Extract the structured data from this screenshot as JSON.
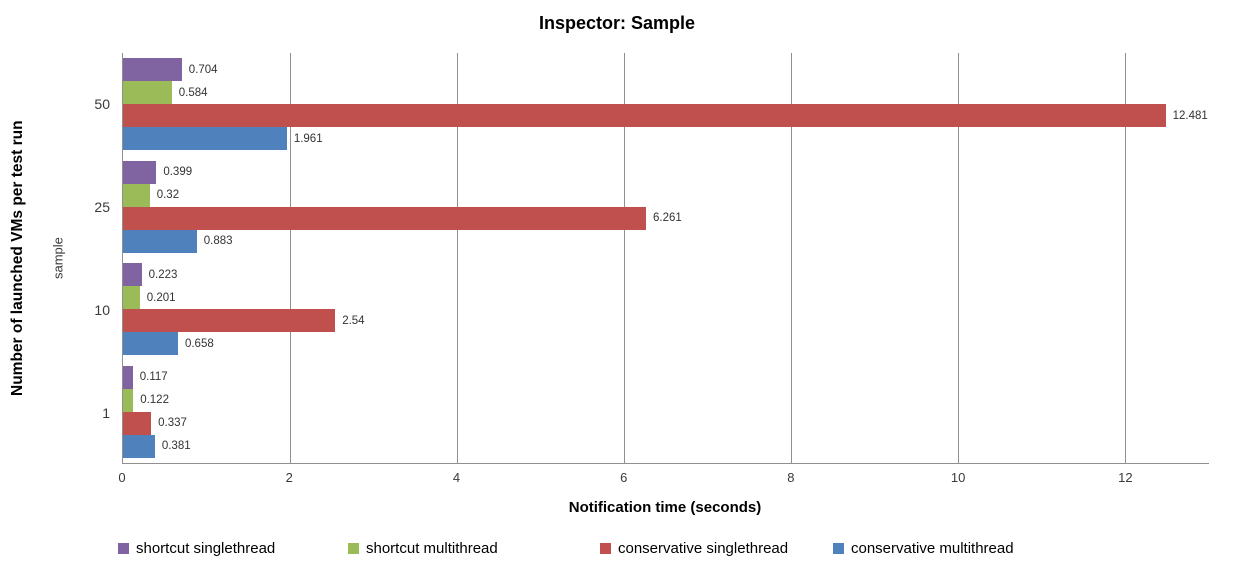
{
  "chart_data": {
    "type": "bar",
    "orientation": "horizontal",
    "title": "Inspector: Sample",
    "xlabel": "Notification time (seconds)",
    "ylabel_outer": "Number of launched VMs per test run",
    "ylabel_inner": "sample",
    "categories": [
      "50",
      "25",
      "10",
      "1"
    ],
    "series": [
      {
        "name": "shortcut singlethread",
        "color": "#8064A2",
        "values": [
          0.704,
          0.399,
          0.223,
          0.117
        ],
        "labels": [
          "0.704",
          "0.399",
          "0.223",
          "0.117"
        ]
      },
      {
        "name": "shortcut multithread",
        "color": "#9BBB59",
        "values": [
          0.584,
          0.32,
          0.201,
          0.122
        ],
        "labels": [
          "0.584",
          "0.32",
          "0.201",
          "0.122"
        ]
      },
      {
        "name": "conservative singlethread",
        "color": "#C0504D",
        "values": [
          12.481,
          6.261,
          2.54,
          0.337
        ],
        "labels": [
          "12.481",
          "6.261",
          "2.54",
          "0.337"
        ]
      },
      {
        "name": "conservative multithread",
        "color": "#4F81BD",
        "values": [
          1.961,
          0.883,
          0.658,
          0.381
        ],
        "labels": [
          "1.961",
          "0.883",
          "0.658",
          "0.381"
        ]
      }
    ],
    "x_ticks": [
      "0",
      "2",
      "4",
      "6",
      "8",
      "10",
      "12"
    ],
    "xlim": [
      0,
      13
    ],
    "grid": true,
    "legend_position": "bottom",
    "legend": [
      "shortcut singlethread",
      "shortcut multithread",
      "conservative singlethread",
      "conservative multithread"
    ],
    "colors": {
      "gridline": "#8f8f8f",
      "axis_line": "#8f8f8f",
      "data_label": "#333333",
      "text": "#000000"
    }
  }
}
